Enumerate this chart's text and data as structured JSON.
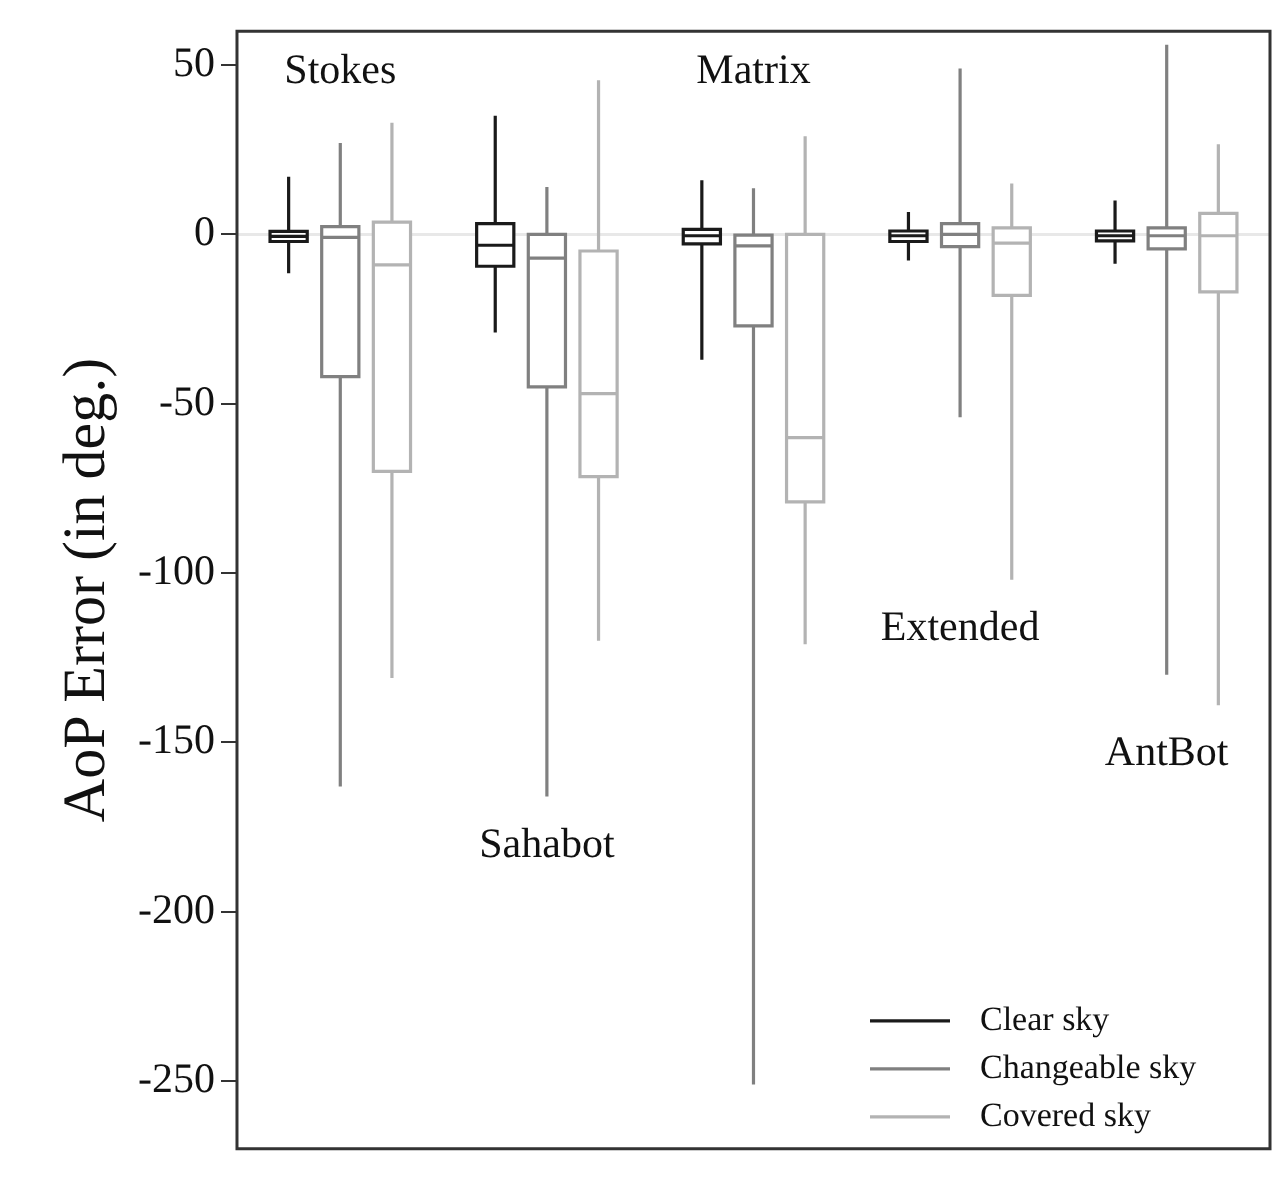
{
  "chart_data": {
    "type": "box",
    "categories": [
      "Stokes",
      "Sahabot",
      "Matrix",
      "Extended",
      "AntBot"
    ],
    "ylabel": "AoP Error (in deg.)",
    "ylim": [
      -270,
      60
    ],
    "yticks": [
      50,
      0,
      -50,
      -100,
      -150,
      -200,
      -250
    ],
    "grid": false,
    "tick_labels": "y",
    "legend": "bottom right",
    "ref_lines": [
      {
        "axis": "y",
        "value": 0,
        "color": "#e8e8e8"
      }
    ],
    "series": [
      {
        "name": "Clear sky",
        "color": "#1a1a1a",
        "boxes": [
          {
            "low": -11.5,
            "q1": -2.1,
            "median": -0.6,
            "q3": 0.9,
            "high": 17
          },
          {
            "low": -29,
            "q1": -9.4,
            "median": -3.2,
            "q3": 3.2,
            "high": 35
          },
          {
            "low": -37,
            "q1": -2.8,
            "median": -0.4,
            "q3": 1.5,
            "high": 16
          },
          {
            "low": -7.7,
            "q1": -2.1,
            "median": -0.4,
            "q3": 1,
            "high": 6.6
          },
          {
            "low": -8.7,
            "q1": -1.9,
            "median": -0.4,
            "q3": 1,
            "high": 10
          }
        ]
      },
      {
        "name": "Changeable sky",
        "color": "#808080",
        "boxes": [
          {
            "low": -163,
            "q1": -42,
            "median": -0.9,
            "q3": 2.3,
            "high": 27
          },
          {
            "low": -166,
            "q1": -45,
            "median": -7,
            "q3": 0,
            "high": 14
          },
          {
            "low": -251,
            "q1": -27,
            "median": -3.4,
            "q3": -0.2,
            "high": 13.6
          },
          {
            "low": -54,
            "q1": -3.6,
            "median": 0,
            "q3": 3.2,
            "high": 49
          },
          {
            "low": -130,
            "q1": -4.3,
            "median": -0.4,
            "q3": 1.9,
            "high": 56
          }
        ]
      },
      {
        "name": "Covered sky",
        "color": "#b3b3b3",
        "boxes": [
          {
            "low": -131,
            "q1": -70,
            "median": -9,
            "q3": 3.6,
            "high": 33
          },
          {
            "low": -120,
            "q1": -71.5,
            "median": -47,
            "q3": -4.9,
            "high": 45.5
          },
          {
            "low": -121,
            "q1": -79,
            "median": -60,
            "q3": 0,
            "high": 29
          },
          {
            "low": -102,
            "q1": -18,
            "median": -2.6,
            "q3": 1.9,
            "high": 15
          },
          {
            "low": -139,
            "q1": -17,
            "median": -0.4,
            "q3": 6.2,
            "high": 26.6
          }
        ]
      }
    ]
  }
}
